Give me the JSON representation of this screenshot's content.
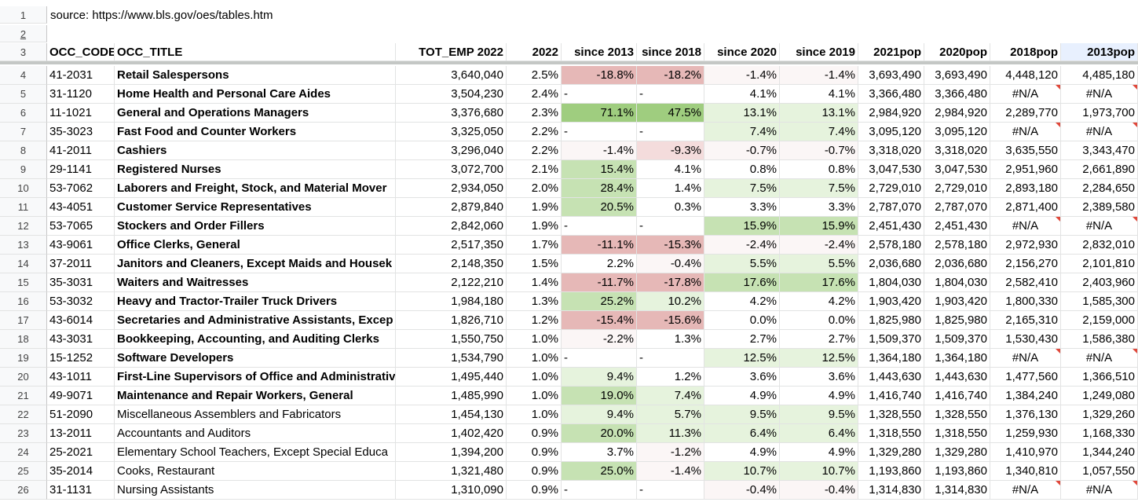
{
  "source_text": "source: https://www.bls.gov/oes/tables.htm",
  "row_numbers_top": [
    "1",
    "2",
    "3"
  ],
  "headers": [
    "OCC_CODE",
    "OCC_TITLE",
    "TOT_EMP 2022",
    "2022",
    "since 2013",
    "since 2018",
    "since 2020",
    "since 2019",
    "2021pop",
    "2020pop",
    "2018pop",
    "2013pop"
  ],
  "colors": {
    "red_strong": "#e6b8b7",
    "red_light": "#f4dcdc",
    "green_strong": "#9fcd7f",
    "green_mid": "#c6e2b3",
    "green_light": "#e6f3dd",
    "neutral": "#fbf6f6",
    "comment_flag": "#e0483b"
  },
  "rows": [
    {
      "n": "4",
      "code": "41-2031",
      "title": "Retail Salespersons",
      "tot": "3,640,040",
      "p22": "2.5%",
      "s13": "-18.8%",
      "s18": "-18.2%",
      "s20": "-1.4%",
      "s19": "-1.4%",
      "p21": "3,693,490",
      "p20": "3,693,490",
      "p18": "4,448,120",
      "p13": "4,485,180",
      "bold": true
    },
    {
      "n": "5",
      "code": "31-1120",
      "title": "Home Health and Personal Care Aides",
      "tot": "3,504,230",
      "p22": "2.4%",
      "s13": "-",
      "s18": "-",
      "s20": "4.1%",
      "s19": "4.1%",
      "p21": "3,366,480",
      "p20": "3,366,480",
      "p18": "#N/A",
      "p13": "#N/A",
      "bold": true
    },
    {
      "n": "6",
      "code": "11-1021",
      "title": "General and Operations Managers",
      "tot": "3,376,680",
      "p22": "2.3%",
      "s13": "71.1%",
      "s18": "47.5%",
      "s20": "13.1%",
      "s19": "13.1%",
      "p21": "2,984,920",
      "p20": "2,984,920",
      "p18": "2,289,770",
      "p13": "1,973,700",
      "bold": true
    },
    {
      "n": "7",
      "code": "35-3023",
      "title": "Fast Food and Counter Workers",
      "tot": "3,325,050",
      "p22": "2.2%",
      "s13": "-",
      "s18": "-",
      "s20": "7.4%",
      "s19": "7.4%",
      "p21": "3,095,120",
      "p20": "3,095,120",
      "p18": "#N/A",
      "p13": "#N/A",
      "bold": true
    },
    {
      "n": "8",
      "code": "41-2011",
      "title": "Cashiers",
      "tot": "3,296,040",
      "p22": "2.2%",
      "s13": "-1.4%",
      "s18": "-9.3%",
      "s20": "-0.7%",
      "s19": "-0.7%",
      "p21": "3,318,020",
      "p20": "3,318,020",
      "p18": "3,635,550",
      "p13": "3,343,470",
      "bold": true
    },
    {
      "n": "9",
      "code": "29-1141",
      "title": "Registered Nurses",
      "tot": "3,072,700",
      "p22": "2.1%",
      "s13": "15.4%",
      "s18": "4.1%",
      "s20": "0.8%",
      "s19": "0.8%",
      "p21": "3,047,530",
      "p20": "3,047,530",
      "p18": "2,951,960",
      "p13": "2,661,890",
      "bold": true
    },
    {
      "n": "10",
      "code": "53-7062",
      "title": "Laborers and Freight, Stock, and Material Mover",
      "tot": "2,934,050",
      "p22": "2.0%",
      "s13": "28.4%",
      "s18": "1.4%",
      "s20": "7.5%",
      "s19": "7.5%",
      "p21": "2,729,010",
      "p20": "2,729,010",
      "p18": "2,893,180",
      "p13": "2,284,650",
      "bold": true
    },
    {
      "n": "11",
      "code": "43-4051",
      "title": "Customer Service Representatives",
      "tot": "2,879,840",
      "p22": "1.9%",
      "s13": "20.5%",
      "s18": "0.3%",
      "s20": "3.3%",
      "s19": "3.3%",
      "p21": "2,787,070",
      "p20": "2,787,070",
      "p18": "2,871,400",
      "p13": "2,389,580",
      "bold": true
    },
    {
      "n": "12",
      "code": "53-7065",
      "title": "Stockers and Order Fillers",
      "tot": "2,842,060",
      "p22": "1.9%",
      "s13": "-",
      "s18": "-",
      "s20": "15.9%",
      "s19": "15.9%",
      "p21": "2,451,430",
      "p20": "2,451,430",
      "p18": "#N/A",
      "p13": "#N/A",
      "bold": true
    },
    {
      "n": "13",
      "code": "43-9061",
      "title": "Office Clerks, General",
      "tot": "2,517,350",
      "p22": "1.7%",
      "s13": "-11.1%",
      "s18": "-15.3%",
      "s20": "-2.4%",
      "s19": "-2.4%",
      "p21": "2,578,180",
      "p20": "2,578,180",
      "p18": "2,972,930",
      "p13": "2,832,010",
      "bold": true
    },
    {
      "n": "14",
      "code": "37-2011",
      "title": "Janitors and Cleaners, Except Maids and Housek",
      "tot": "2,148,350",
      "p22": "1.5%",
      "s13": "2.2%",
      "s18": "-0.4%",
      "s20": "5.5%",
      "s19": "5.5%",
      "p21": "2,036,680",
      "p20": "2,036,680",
      "p18": "2,156,270",
      "p13": "2,101,810",
      "bold": true
    },
    {
      "n": "15",
      "code": "35-3031",
      "title": "Waiters and Waitresses",
      "tot": "2,122,210",
      "p22": "1.4%",
      "s13": "-11.7%",
      "s18": "-17.8%",
      "s20": "17.6%",
      "s19": "17.6%",
      "p21": "1,804,030",
      "p20": "1,804,030",
      "p18": "2,582,410",
      "p13": "2,403,960",
      "bold": true
    },
    {
      "n": "16",
      "code": "53-3032",
      "title": "Heavy and Tractor-Trailer Truck Drivers",
      "tot": "1,984,180",
      "p22": "1.3%",
      "s13": "25.2%",
      "s18": "10.2%",
      "s20": "4.2%",
      "s19": "4.2%",
      "p21": "1,903,420",
      "p20": "1,903,420",
      "p18": "1,800,330",
      "p13": "1,585,300",
      "bold": true
    },
    {
      "n": "17",
      "code": "43-6014",
      "title": "Secretaries and Administrative Assistants, Excep",
      "tot": "1,826,710",
      "p22": "1.2%",
      "s13": "-15.4%",
      "s18": "-15.6%",
      "s20": "0.0%",
      "s19": "0.0%",
      "p21": "1,825,980",
      "p20": "1,825,980",
      "p18": "2,165,310",
      "p13": "2,159,000",
      "bold": true
    },
    {
      "n": "18",
      "code": "43-3031",
      "title": "Bookkeeping, Accounting, and Auditing Clerks",
      "tot": "1,550,750",
      "p22": "1.0%",
      "s13": "-2.2%",
      "s18": "1.3%",
      "s20": "2.7%",
      "s19": "2.7%",
      "p21": "1,509,370",
      "p20": "1,509,370",
      "p18": "1,530,430",
      "p13": "1,586,380",
      "bold": true
    },
    {
      "n": "19",
      "code": "15-1252",
      "title": "Software Developers",
      "tot": "1,534,790",
      "p22": "1.0%",
      "s13": "-",
      "s18": "-",
      "s20": "12.5%",
      "s19": "12.5%",
      "p21": "1,364,180",
      "p20": "1,364,180",
      "p18": "#N/A",
      "p13": "#N/A",
      "bold": true
    },
    {
      "n": "20",
      "code": "43-1011",
      "title": "First-Line Supervisors of Office and Administrativ",
      "tot": "1,495,440",
      "p22": "1.0%",
      "s13": "9.4%",
      "s18": "1.2%",
      "s20": "3.6%",
      "s19": "3.6%",
      "p21": "1,443,630",
      "p20": "1,443,630",
      "p18": "1,477,560",
      "p13": "1,366,510",
      "bold": true
    },
    {
      "n": "21",
      "code": "49-9071",
      "title": "Maintenance and Repair Workers, General",
      "tot": "1,485,990",
      "p22": "1.0%",
      "s13": "19.0%",
      "s18": "7.4%",
      "s20": "4.9%",
      "s19": "4.9%",
      "p21": "1,416,740",
      "p20": "1,416,740",
      "p18": "1,384,240",
      "p13": "1,249,080",
      "bold": true
    },
    {
      "n": "22",
      "code": "51-2090",
      "title": "Miscellaneous Assemblers and Fabricators",
      "tot": "1,454,130",
      "p22": "1.0%",
      "s13": "9.4%",
      "s18": "5.7%",
      "s20": "9.5%",
      "s19": "9.5%",
      "p21": "1,328,550",
      "p20": "1,328,550",
      "p18": "1,376,130",
      "p13": "1,329,260",
      "bold": false
    },
    {
      "n": "23",
      "code": "13-2011",
      "title": "Accountants and Auditors",
      "tot": "1,402,420",
      "p22": "0.9%",
      "s13": "20.0%",
      "s18": "11.3%",
      "s20": "6.4%",
      "s19": "6.4%",
      "p21": "1,318,550",
      "p20": "1,318,550",
      "p18": "1,259,930",
      "p13": "1,168,330",
      "bold": false
    },
    {
      "n": "24",
      "code": "25-2021",
      "title": "Elementary School Teachers, Except Special Educa",
      "tot": "1,394,200",
      "p22": "0.9%",
      "s13": "3.7%",
      "s18": "-1.2%",
      "s20": "4.9%",
      "s19": "4.9%",
      "p21": "1,329,280",
      "p20": "1,329,280",
      "p18": "1,410,970",
      "p13": "1,344,240",
      "bold": false
    },
    {
      "n": "25",
      "code": "35-2014",
      "title": "Cooks, Restaurant",
      "tot": "1,321,480",
      "p22": "0.9%",
      "s13": "25.0%",
      "s18": "-1.4%",
      "s20": "10.7%",
      "s19": "10.7%",
      "p21": "1,193,860",
      "p20": "1,193,860",
      "p18": "1,340,810",
      "p13": "1,057,550",
      "bold": false
    },
    {
      "n": "26",
      "code": "31-1131",
      "title": "Nursing Assistants",
      "tot": "1,310,090",
      "p22": "0.9%",
      "s13": "-",
      "s18": "-",
      "s20": "-0.4%",
      "s19": "-0.4%",
      "p21": "1,314,830",
      "p20": "1,314,830",
      "p18": "#N/A",
      "p13": "#N/A",
      "bold": false
    }
  ]
}
